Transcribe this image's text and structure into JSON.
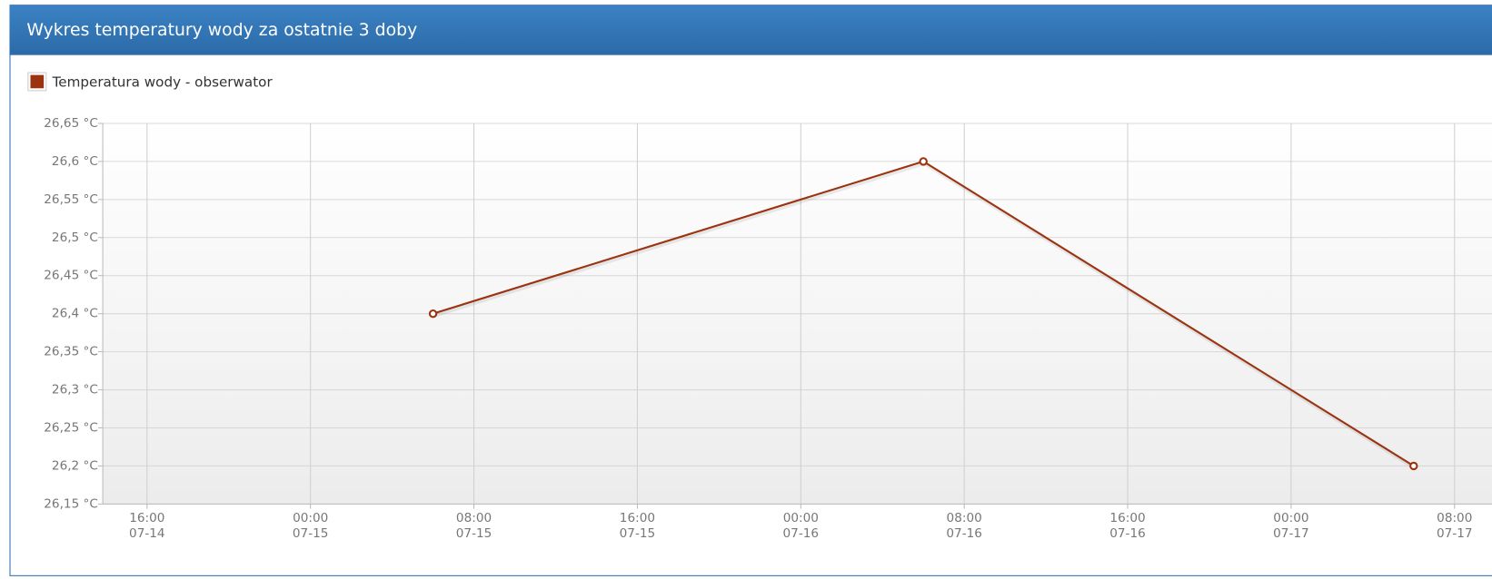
{
  "chart_data": {
    "type": "line",
    "title": "Wykres temperatury wody za ostatnie 3 doby",
    "series": [
      {
        "name": "Temperatura wody - obserwator",
        "color": "#9b3310",
        "x": [
          "07-15 06:00",
          "07-16 06:00",
          "07-17 06:00"
        ],
        "values": [
          26.4,
          26.6,
          26.2
        ]
      }
    ],
    "xlim": [
      "07-14 13:50",
      "07-17 09:50"
    ],
    "xticks": [
      {
        "value": "07-14 16:00",
        "label": [
          "16:00",
          "07-14"
        ]
      },
      {
        "value": "07-15 00:00",
        "label": [
          "00:00",
          "07-15"
        ]
      },
      {
        "value": "07-15 08:00",
        "label": [
          "08:00",
          "07-15"
        ]
      },
      {
        "value": "07-15 16:00",
        "label": [
          "16:00",
          "07-15"
        ]
      },
      {
        "value": "07-16 00:00",
        "label": [
          "00:00",
          "07-16"
        ]
      },
      {
        "value": "07-16 08:00",
        "label": [
          "08:00",
          "07-16"
        ]
      },
      {
        "value": "07-16 16:00",
        "label": [
          "16:00",
          "07-16"
        ]
      },
      {
        "value": "07-17 00:00",
        "label": [
          "00:00",
          "07-17"
        ]
      },
      {
        "value": "07-17 08:00",
        "label": [
          "08:00",
          "07-17"
        ]
      }
    ],
    "ylim": [
      26.15,
      26.65
    ],
    "yticks": [
      {
        "value": 26.15,
        "label": "26,15 °C"
      },
      {
        "value": 26.2,
        "label": "26,2 °C"
      },
      {
        "value": 26.25,
        "label": "26,25 °C"
      },
      {
        "value": 26.3,
        "label": "26,3 °C"
      },
      {
        "value": 26.35,
        "label": "26,35 °C"
      },
      {
        "value": 26.4,
        "label": "26,4 °C"
      },
      {
        "value": 26.45,
        "label": "26,45 °C"
      },
      {
        "value": 26.5,
        "label": "26,5 °C"
      },
      {
        "value": 26.55,
        "label": "26,55 °C"
      },
      {
        "value": 26.6,
        "label": "26,6 °C"
      },
      {
        "value": 26.65,
        "label": "26,65 °C"
      }
    ],
    "grid": true
  }
}
